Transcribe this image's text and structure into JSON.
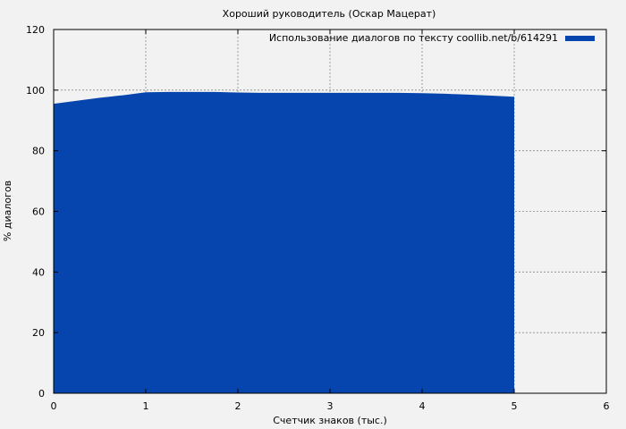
{
  "chart_data": {
    "type": "area",
    "title": "Хороший руководитель (Оскар Мацерат)",
    "xlabel": "Счетчик знаков (тыс.)",
    "ylabel": "% диалогов",
    "xlim": [
      0,
      6
    ],
    "ylim": [
      0,
      120
    ],
    "x_ticks": [
      0,
      1,
      2,
      3,
      4,
      5,
      6
    ],
    "y_ticks": [
      0,
      20,
      40,
      60,
      80,
      100,
      120
    ],
    "grid": true,
    "legend_position": "top-right",
    "series": [
      {
        "name": "Использование диалогов по тексту coollib.net/b/614291",
        "color": "#0645ad",
        "x": [
          0,
          0.25,
          0.5,
          0.75,
          1.0,
          1.25,
          1.5,
          1.75,
          2.0,
          2.25,
          2.5,
          2.75,
          3.0,
          3.25,
          3.5,
          3.75,
          4.0,
          4.25,
          4.5,
          4.75,
          5.0
        ],
        "y": [
          95.5,
          96.5,
          97.5,
          98.3,
          99.3,
          99.4,
          99.4,
          99.4,
          99.2,
          99.1,
          99.1,
          99.1,
          99.1,
          99.1,
          99.1,
          99.1,
          99.0,
          98.8,
          98.5,
          98.2,
          97.8
        ]
      }
    ]
  }
}
